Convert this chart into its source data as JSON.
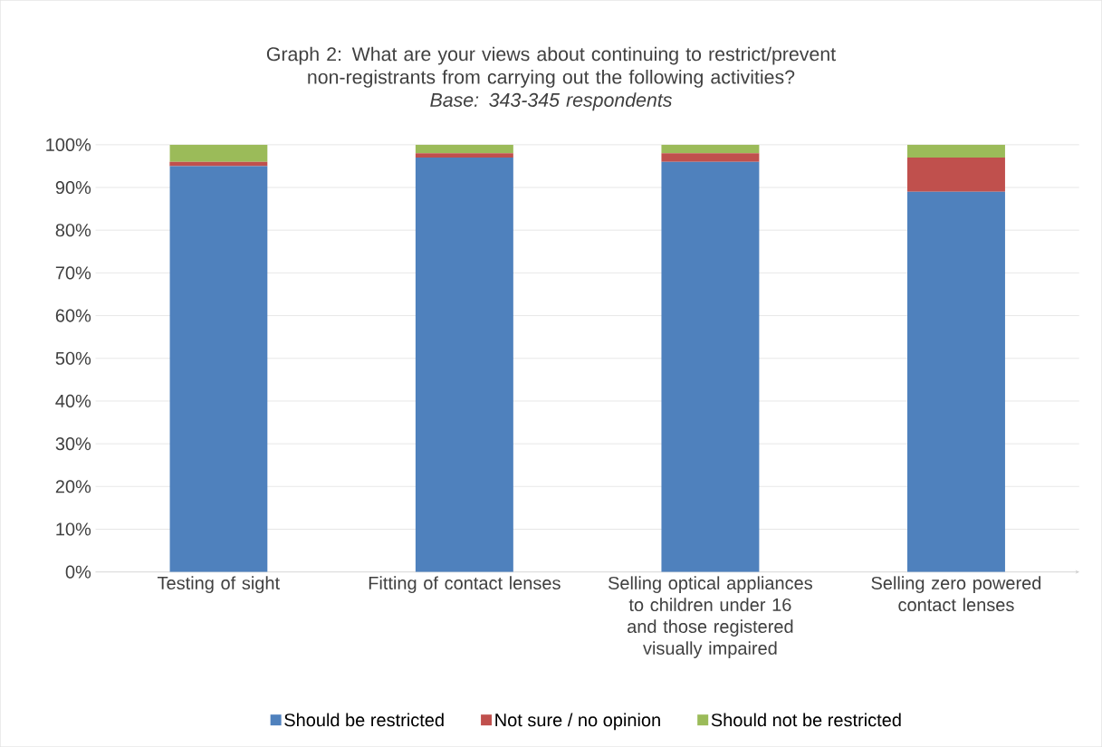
{
  "chart_data": {
    "type": "bar",
    "stacked": true,
    "title": "Graph 2: What are your views about continuing to restrict/prevent non-registrants from carrying out the following activities?",
    "subtitle": "Base: 343-345 respondents",
    "categories": [
      "Testing of sight",
      "Fitting of contact lenses",
      "Selling optical appliances to children under 16 and those registered visually impaired",
      "Selling zero powered contact lenses"
    ],
    "series": [
      {
        "name": "Should be restricted",
        "color": "#4f81bd",
        "values": [
          95,
          97,
          96,
          89
        ]
      },
      {
        "name": "Not sure / no opinion",
        "color": "#c0504d",
        "values": [
          1,
          1,
          2,
          8
        ]
      },
      {
        "name": "Should not be restricted",
        "color": "#9bbb59",
        "values": [
          4,
          2,
          2,
          3
        ]
      }
    ],
    "ylim": [
      0,
      100
    ],
    "yticks": [
      {
        "value": 0,
        "label": "0%"
      },
      {
        "value": 10,
        "label": "10%"
      },
      {
        "value": 20,
        "label": "20%"
      },
      {
        "value": 30,
        "label": "30%"
      },
      {
        "value": 40,
        "label": "40%"
      },
      {
        "value": 50,
        "label": "50%"
      },
      {
        "value": 60,
        "label": "60%"
      },
      {
        "value": 70,
        "label": "70%"
      },
      {
        "value": 80,
        "label": "80%"
      },
      {
        "value": 90,
        "label": "90%"
      },
      {
        "value": 100,
        "label": "100%"
      }
    ],
    "grid": "y",
    "legend": "bottom"
  }
}
